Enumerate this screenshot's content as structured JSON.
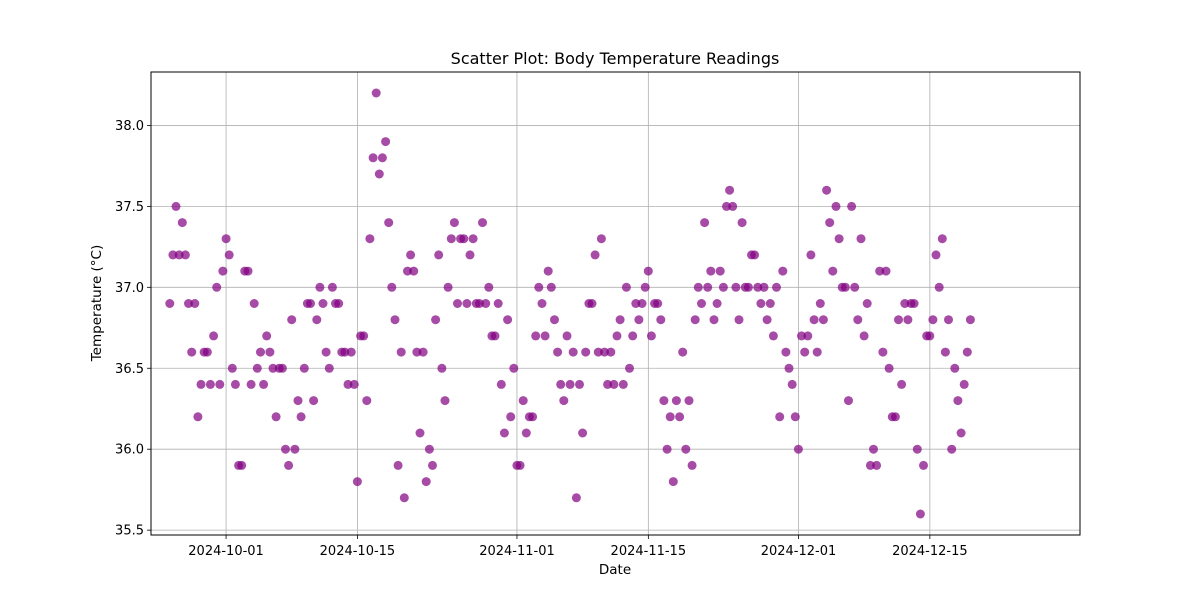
{
  "chart_data": {
    "type": "scatter",
    "title": "Scatter Plot: Body Temperature Readings",
    "xlabel": "Date",
    "ylabel": "Temperature (°C)",
    "marker_color": "#800080",
    "marker_alpha": 0.7,
    "grid": true,
    "x_axis": {
      "type": "date",
      "range": [
        "2024-09-23",
        "2024-12-31"
      ],
      "ticks": [
        "2024-10-01",
        "2024-10-15",
        "2024-11-01",
        "2024-11-15",
        "2024-12-01",
        "2024-12-15"
      ]
    },
    "y_axis": {
      "range": [
        35.47,
        38.33
      ],
      "ticks": [
        35.5,
        36.0,
        36.5,
        37.0,
        37.5,
        38.0
      ],
      "tick_labels": [
        "35.5",
        "36.0",
        "36.5",
        "37.0",
        "37.5",
        "38.0"
      ]
    },
    "start_date": "2024-09-25",
    "step_days": 0.3333,
    "values": [
      36.9,
      37.2,
      37.5,
      37.2,
      37.4,
      37.2,
      36.9,
      36.6,
      36.9,
      36.2,
      36.4,
      36.6,
      36.6,
      36.4,
      36.7,
      37.0,
      36.4,
      37.1,
      37.3,
      37.2,
      36.5,
      36.4,
      35.9,
      35.9,
      37.1,
      37.1,
      36.4,
      36.9,
      36.5,
      36.6,
      36.4,
      36.7,
      36.6,
      36.5,
      36.2,
      36.5,
      36.5,
      36.0,
      35.9,
      36.8,
      36.0,
      36.3,
      36.2,
      36.5,
      36.9,
      36.9,
      36.3,
      36.8,
      37.0,
      36.9,
      36.6,
      36.5,
      37.0,
      36.9,
      36.9,
      36.6,
      36.6,
      36.4,
      36.6,
      36.4,
      35.8,
      36.7,
      36.7,
      36.3,
      37.3,
      37.8,
      38.2,
      37.7,
      37.8,
      37.9,
      37.4,
      37.0,
      36.8,
      35.9,
      36.6,
      35.7,
      37.1,
      37.2,
      37.1,
      36.6,
      36.1,
      36.6,
      35.8,
      36.0,
      35.9,
      36.8,
      37.2,
      36.5,
      36.3,
      37.0,
      37.3,
      37.4,
      36.9,
      37.3,
      37.3,
      36.9,
      37.2,
      37.3,
      36.9,
      36.9,
      37.4,
      36.9,
      37.0,
      36.7,
      36.7,
      36.9,
      36.4,
      36.1,
      36.8,
      36.2,
      36.5,
      35.9,
      35.9,
      36.3,
      36.1,
      36.2,
      36.2,
      36.7,
      37.0,
      36.9,
      36.7,
      37.1,
      37.0,
      36.8,
      36.6,
      36.4,
      36.3,
      36.7,
      36.4,
      36.6,
      35.7,
      36.4,
      36.1,
      36.6,
      36.9,
      36.9,
      37.2,
      36.6,
      37.3,
      36.6,
      36.4,
      36.6,
      36.4,
      36.7,
      36.8,
      36.4,
      37.0,
      36.5,
      36.7,
      36.9,
      36.8,
      36.9,
      37.0,
      37.1,
      36.7,
      36.9,
      36.9,
      36.8,
      36.3,
      36.0,
      36.2,
      35.8,
      36.3,
      36.2,
      36.6,
      36.0,
      36.3,
      35.9,
      36.8,
      37.0,
      36.9,
      37.4,
      37.0,
      37.1,
      36.8,
      36.9,
      37.1,
      37.0,
      37.5,
      37.6,
      37.5,
      37.0,
      36.8,
      37.4,
      37.0,
      37.0,
      37.2,
      37.2,
      37.0,
      36.9,
      37.0,
      36.8,
      36.9,
      36.7,
      37.0,
      36.2,
      37.1,
      36.6,
      36.5,
      36.4,
      36.2,
      36.0,
      36.7,
      36.6,
      36.7,
      37.2,
      36.8,
      36.6,
      36.9,
      36.8,
      37.6,
      37.4,
      37.1,
      37.5,
      37.3,
      37.0,
      37.0,
      36.3,
      37.5,
      37.0,
      36.8,
      37.3,
      36.7,
      36.9,
      35.9,
      36.0,
      35.9,
      37.1,
      36.6,
      37.1,
      36.5,
      36.2,
      36.2,
      36.8,
      36.4,
      36.9,
      36.8,
      36.9,
      36.9,
      36.0,
      35.6,
      35.9,
      36.7,
      36.7,
      36.8,
      37.2,
      37.0,
      37.3,
      36.6,
      36.8,
      36.0,
      36.5,
      36.3,
      36.1,
      36.4,
      36.6,
      36.8
    ]
  }
}
